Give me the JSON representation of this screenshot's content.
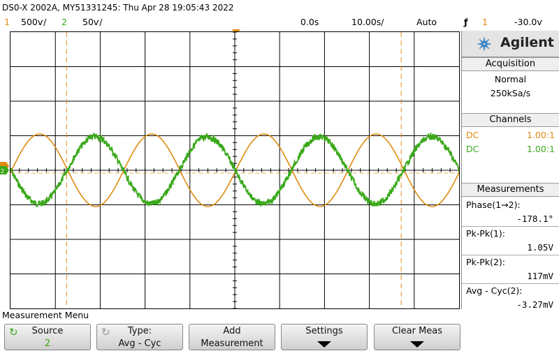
{
  "title": "DS0-X 2002A, MY51331245: Thu Apr 28 19:05:43 2022",
  "status": {
    "ch1_num": "1",
    "ch1_scale": "500ѵ/",
    "ch2_num": "2",
    "ch2_scale": "50ѵ/",
    "time_delay": "0.0s",
    "timebase": "10.00ѕ/",
    "trigger_mode": "Auto",
    "trigger_slope": "ƒ",
    "trigger_source": "1",
    "trigger_level": "-30.0ѵ"
  },
  "panel": {
    "brand": "Agilent",
    "acquisition": {
      "header": "Acquisition",
      "mode": "Normal",
      "rate": "250kSa/s"
    },
    "channels": {
      "header": "Channels",
      "ch1_coupling": "DC",
      "ch1_probe": "1.00:1",
      "ch2_coupling": "DC",
      "ch2_probe": "1.00:1"
    },
    "measurements": {
      "header": "Measurements",
      "m1_label": "Phase(1→2):",
      "m1_value": "-178.1°",
      "m2_label": "Pk-Pk(1):",
      "m2_value": "1.05V",
      "m3_label": "Pk-Pk(2):",
      "m3_value": "117mV",
      "m4_label": "Avg - Cyc(2):",
      "m4_value": "-3.27mV"
    }
  },
  "softkeys": {
    "menu_title": "Measurement Menu",
    "source_label": "Source",
    "source_value": "2",
    "type_label": "Type:",
    "type_value": "Avg - Cyc",
    "add_l1": "Add",
    "add_l2": "Measurement",
    "settings_label": "Settings",
    "clear_label": "Clear Meas"
  },
  "colors": {
    "ch1": "#e08a0f",
    "ch2": "#3aa81a",
    "grid": "#000000"
  },
  "waveforms": {
    "ch1": {
      "amplitude_v": 0.525,
      "phase_deg": 0,
      "cycles_on_screen": 4
    },
    "ch2": {
      "amplitude_v": 0.0585,
      "phase_deg": -178.1,
      "cycles_on_screen": 4
    }
  }
}
